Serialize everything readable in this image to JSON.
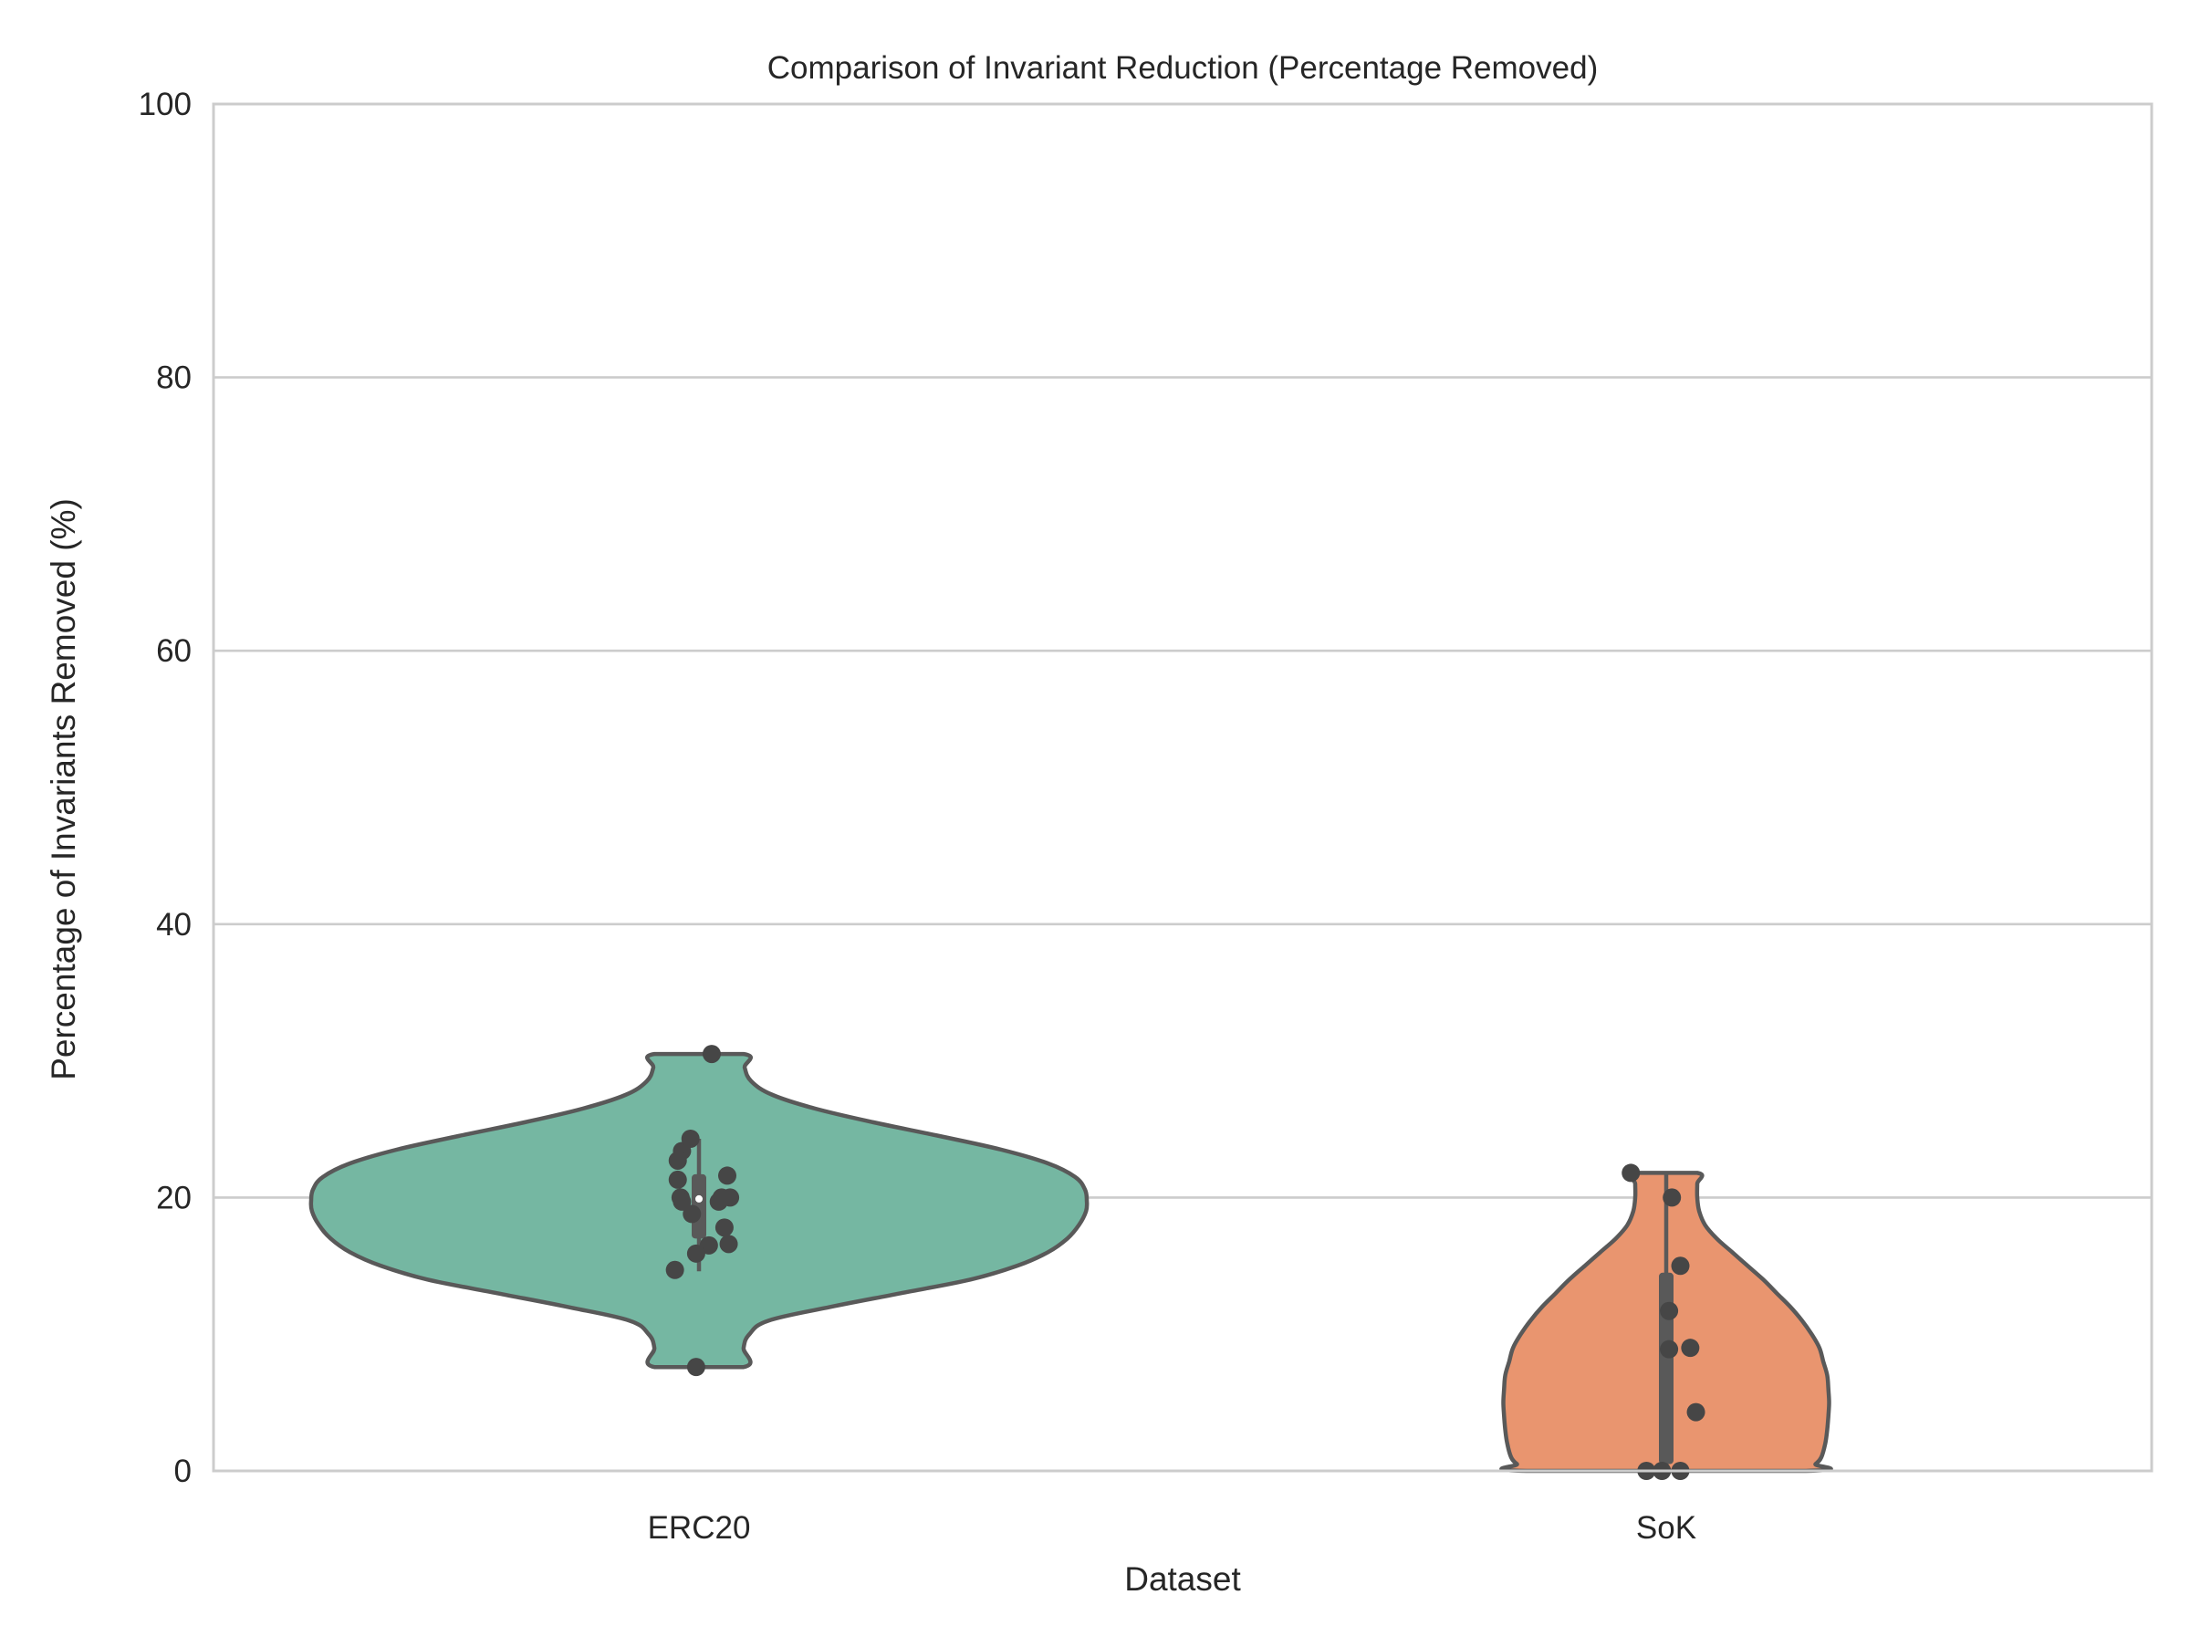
{
  "chart_data": {
    "type": "violin",
    "title": "Comparison of Invariant Reduction (Percentage Removed)",
    "xlabel": "Dataset",
    "ylabel": "Percentage of Invariants Removed (%)",
    "ylim": [
      0,
      100
    ],
    "yticks": [
      0,
      20,
      40,
      60,
      80,
      100
    ],
    "grid": "horizontal",
    "categories": [
      "ERC20",
      "SoK"
    ],
    "colors": {
      "ERC20": "#75b7a2",
      "SoK": "#e9956f",
      "outline": "#595959",
      "points": "#464646",
      "grid": "#cccccc",
      "frame": "#cccccc"
    },
    "series": [
      {
        "category": "ERC20",
        "min": 7.6,
        "max": 30.5,
        "median": 19.9,
        "q1": 17.0,
        "q3": 21.7,
        "whisker_low": 14.6,
        "whisker_high": 24.3,
        "density": [
          [
            7.6,
            0.115
          ],
          [
            9.0,
            0.115
          ],
          [
            10.0,
            0.13
          ],
          [
            11.0,
            0.18
          ],
          [
            12.0,
            0.34
          ],
          [
            13.0,
            0.52
          ],
          [
            14.0,
            0.7
          ],
          [
            15.0,
            0.82
          ],
          [
            16.0,
            0.9
          ],
          [
            17.0,
            0.95
          ],
          [
            18.0,
            0.98
          ],
          [
            19.0,
            0.998
          ],
          [
            19.8,
            1.0
          ],
          [
            20.6,
            0.995
          ],
          [
            21.5,
            0.97
          ],
          [
            22.5,
            0.9
          ],
          [
            23.5,
            0.78
          ],
          [
            24.5,
            0.62
          ],
          [
            25.5,
            0.45
          ],
          [
            26.5,
            0.3
          ],
          [
            27.5,
            0.19
          ],
          [
            28.5,
            0.135
          ],
          [
            29.5,
            0.118
          ],
          [
            30.5,
            0.115
          ]
        ],
        "points": [
          {
            "x_jitter": 0.09,
            "y": 30.5
          },
          {
            "x_jitter": -0.12,
            "y": 23.4
          },
          {
            "x_jitter": -0.15,
            "y": 22.7
          },
          {
            "x_jitter": -0.15,
            "y": 21.3
          },
          {
            "x_jitter": -0.13,
            "y": 20.0
          },
          {
            "x_jitter": -0.12,
            "y": 19.7
          },
          {
            "x_jitter": 0.2,
            "y": 21.6
          },
          {
            "x_jitter": 0.14,
            "y": 19.7
          },
          {
            "x_jitter": 0.16,
            "y": 20.0
          },
          {
            "x_jitter": 0.22,
            "y": 20.0
          },
          {
            "x_jitter": -0.05,
            "y": 18.8
          },
          {
            "x_jitter": 0.18,
            "y": 17.8
          },
          {
            "x_jitter": 0.21,
            "y": 16.6
          },
          {
            "x_jitter": 0.07,
            "y": 16.5
          },
          {
            "x_jitter": -0.02,
            "y": 15.9
          },
          {
            "x_jitter": -0.17,
            "y": 14.7
          },
          {
            "x_jitter": -0.06,
            "y": 24.3
          },
          {
            "x_jitter": -0.02,
            "y": 7.6
          }
        ]
      },
      {
        "category": "SoK",
        "min": 0,
        "max": 21.8,
        "median": 9.0,
        "q1": 0.5,
        "q3": 14.5,
        "whisker_low": 0,
        "whisker_high": 21.8,
        "density": [
          [
            0.0,
            0.36
          ],
          [
            0.5,
            0.385
          ],
          [
            1.0,
            0.4
          ],
          [
            2.0,
            0.41
          ],
          [
            3.0,
            0.415
          ],
          [
            4.0,
            0.418
          ],
          [
            5.0,
            0.42
          ],
          [
            6.0,
            0.418
          ],
          [
            7.0,
            0.415
          ],
          [
            8.0,
            0.405
          ],
          [
            9.0,
            0.395
          ],
          [
            10.0,
            0.375
          ],
          [
            11.0,
            0.35
          ],
          [
            12.0,
            0.32
          ],
          [
            13.0,
            0.285
          ],
          [
            14.0,
            0.25
          ],
          [
            15.0,
            0.21
          ],
          [
            16.0,
            0.17
          ],
          [
            17.0,
            0.13
          ],
          [
            18.0,
            0.1
          ],
          [
            19.0,
            0.085
          ],
          [
            20.0,
            0.08
          ],
          [
            21.0,
            0.08
          ],
          [
            21.8,
            0.08
          ]
        ],
        "points": [
          {
            "x_jitter": -0.25,
            "y": 21.8
          },
          {
            "x_jitter": 0.04,
            "y": 20.0
          },
          {
            "x_jitter": 0.1,
            "y": 15.0
          },
          {
            "x_jitter": 0.02,
            "y": 11.7
          },
          {
            "x_jitter": 0.02,
            "y": 8.9
          },
          {
            "x_jitter": 0.17,
            "y": 9.0
          },
          {
            "x_jitter": 0.21,
            "y": 4.3
          },
          {
            "x_jitter": -0.14,
            "y": 0
          },
          {
            "x_jitter": -0.03,
            "y": 0
          },
          {
            "x_jitter": 0.1,
            "y": 0
          }
        ]
      }
    ]
  }
}
